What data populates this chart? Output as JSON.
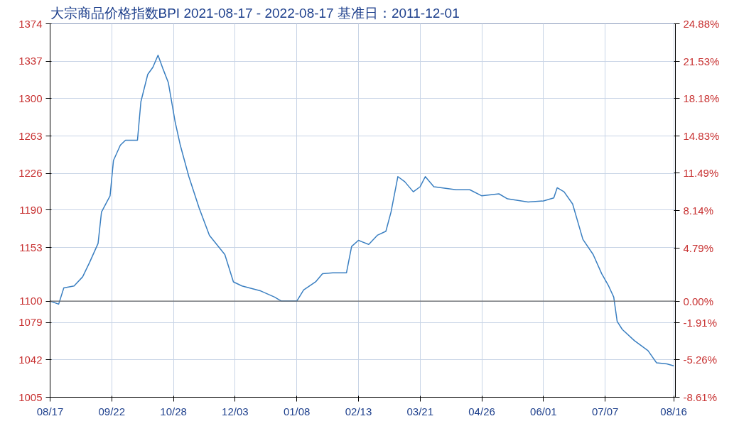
{
  "chart_data": {
    "type": "line",
    "title": "大宗商品价格指数BPI 2021-08-17 - 2022-08-17     基准日：2011-12-01",
    "x": [
      "2021-08-17",
      "2021-08-22",
      "2021-08-25",
      "2021-08-31",
      "2021-09-05",
      "2021-09-09",
      "2021-09-14",
      "2021-09-16",
      "2021-09-21",
      "2021-09-23",
      "2021-09-27",
      "2021-09-30",
      "2021-10-07",
      "2021-10-09",
      "2021-10-13",
      "2021-10-16",
      "2021-10-19",
      "2021-10-22",
      "2021-10-25",
      "2021-10-29",
      "2021-11-01",
      "2021-11-06",
      "2021-11-12",
      "2021-11-18",
      "2021-11-27",
      "2021-12-02",
      "2021-12-07",
      "2021-12-18",
      "2021-12-26",
      "2021-12-30",
      "2022-01-08",
      "2022-01-12",
      "2022-01-19",
      "2022-01-23",
      "2022-01-29",
      "2022-02-06",
      "2022-02-09",
      "2022-02-13",
      "2022-02-19",
      "2022-02-24",
      "2022-03-01",
      "2022-03-04",
      "2022-03-08",
      "2022-03-12",
      "2022-03-17",
      "2022-03-21",
      "2022-03-24",
      "2022-03-29",
      "2022-04-11",
      "2022-04-19",
      "2022-04-26",
      "2022-05-06",
      "2022-05-11",
      "2022-05-23",
      "2022-06-01",
      "2022-06-07",
      "2022-06-09",
      "2022-06-13",
      "2022-06-18",
      "2022-06-24",
      "2022-06-30",
      "2022-07-05",
      "2022-07-09",
      "2022-07-12",
      "2022-07-14",
      "2022-07-17",
      "2022-07-24",
      "2022-08-01",
      "2022-08-06",
      "2022-08-12",
      "2022-08-16"
    ],
    "series": [
      {
        "color": "#3a7fc1",
        "values": [
          1100,
          1097,
          1113,
          1115,
          1124,
          1138,
          1157,
          1188,
          1204,
          1239,
          1254,
          1259,
          1259,
          1297,
          1324,
          1331,
          1343,
          1329,
          1316,
          1277,
          1254,
          1223,
          1192,
          1165,
          1146,
          1119,
          1115,
          1110,
          1104,
          1100,
          1100,
          1111,
          1119,
          1127,
          1128,
          1128,
          1154,
          1160,
          1156,
          1165,
          1169,
          1188,
          1223,
          1218,
          1208,
          1213,
          1223,
          1213,
          1210,
          1210,
          1204,
          1206,
          1201,
          1198,
          1199,
          1202,
          1212,
          1208,
          1196,
          1161,
          1146,
          1127,
          1115,
          1104,
          1080,
          1072,
          1061,
          1051,
          1039,
          1038,
          1036
        ]
      }
    ],
    "xlim": [
      "2021-08-17",
      "2022-08-17"
    ],
    "xticks": [
      {
        "value": "2021-08-17",
        "label": "08/17"
      },
      {
        "value": "2021-09-22",
        "label": "09/22"
      },
      {
        "value": "2021-10-28",
        "label": "10/28"
      },
      {
        "value": "2021-12-03",
        "label": "12/03"
      },
      {
        "value": "2022-01-08",
        "label": "01/08"
      },
      {
        "value": "2022-02-13",
        "label": "02/13"
      },
      {
        "value": "2022-03-21",
        "label": "03/21"
      },
      {
        "value": "2022-04-26",
        "label": "04/26"
      },
      {
        "value": "2022-06-01",
        "label": "06/01"
      },
      {
        "value": "2022-07-07",
        "label": "07/07"
      },
      {
        "value": "2022-08-16",
        "label": "08/16"
      }
    ],
    "ylim": [
      1005,
      1374
    ],
    "yticks": [
      1005,
      1042,
      1079,
      1100,
      1153,
      1190,
      1226,
      1263,
      1300,
      1337,
      1374
    ],
    "y2lim": [
      -8.61,
      24.88
    ],
    "y2ticks": [
      {
        "value": -8.61,
        "label": "-8.61%"
      },
      {
        "value": -5.26,
        "label": "-5.26%"
      },
      {
        "value": -1.91,
        "label": "-1.91%"
      },
      {
        "value": 0,
        "label": "0.00%"
      },
      {
        "value": 4.79,
        "label": "4.79%"
      },
      {
        "value": 8.14,
        "label": "8.14%"
      },
      {
        "value": 11.49,
        "label": "11.49%"
      },
      {
        "value": 14.83,
        "label": "14.83%"
      },
      {
        "value": 18.18,
        "label": "18.18%"
      },
      {
        "value": 21.53,
        "label": "21.53%"
      },
      {
        "value": 24.88,
        "label": "24.88%"
      }
    ],
    "ref_lines": [
      {
        "axis": "y",
        "value": 1100,
        "color": "#666666"
      }
    ],
    "grid": true,
    "marker": "none",
    "line_style": "solid"
  }
}
